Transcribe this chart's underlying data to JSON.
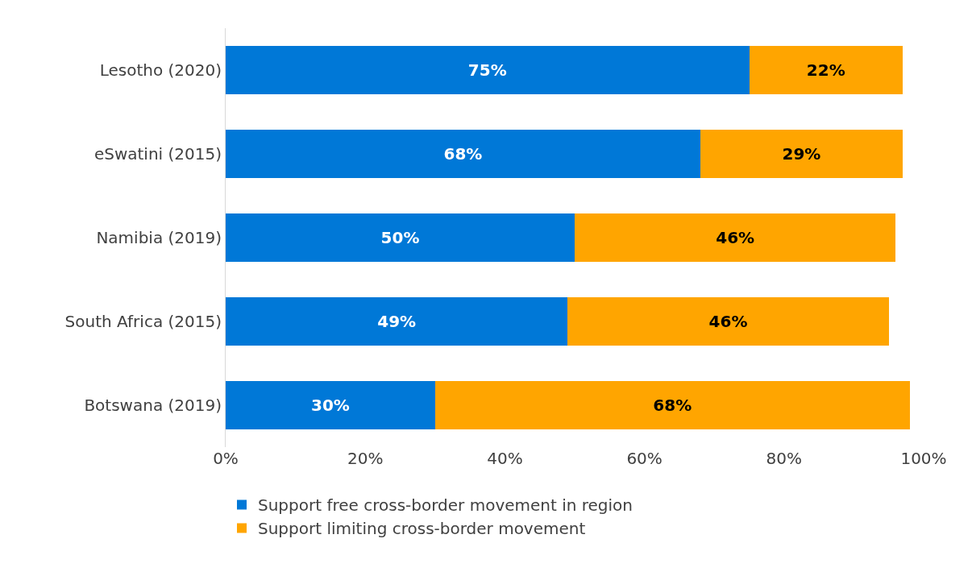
{
  "chart_data": {
    "type": "bar",
    "orientation": "horizontal",
    "stacked": true,
    "categories": [
      "Lesotho (2020)",
      "eSwatini (2015)",
      "Namibia (2019)",
      "South Africa (2015)",
      "Botswana (2019)"
    ],
    "series": [
      {
        "name": "Support free cross-border movement in region",
        "color": "#0078d7",
        "values": [
          75,
          68,
          50,
          49,
          30
        ],
        "value_labels": [
          "75%",
          "68%",
          "50%",
          "49%",
          "30%"
        ]
      },
      {
        "name": "Support limiting cross-border movement",
        "color": "#ffa500",
        "values": [
          22,
          29,
          46,
          46,
          68
        ],
        "value_labels": [
          "22%",
          "29%",
          "46%",
          "46%",
          "68%"
        ]
      }
    ],
    "xlim": [
      0,
      100
    ],
    "xticks": [
      {
        "value": 0,
        "label": "0%"
      },
      {
        "value": 20,
        "label": "20%"
      },
      {
        "value": 40,
        "label": "40%"
      },
      {
        "value": 60,
        "label": "60%"
      },
      {
        "value": 80,
        "label": "80%"
      },
      {
        "value": 100,
        "label": "100%"
      }
    ],
    "grid": false,
    "legend": "bottom"
  }
}
